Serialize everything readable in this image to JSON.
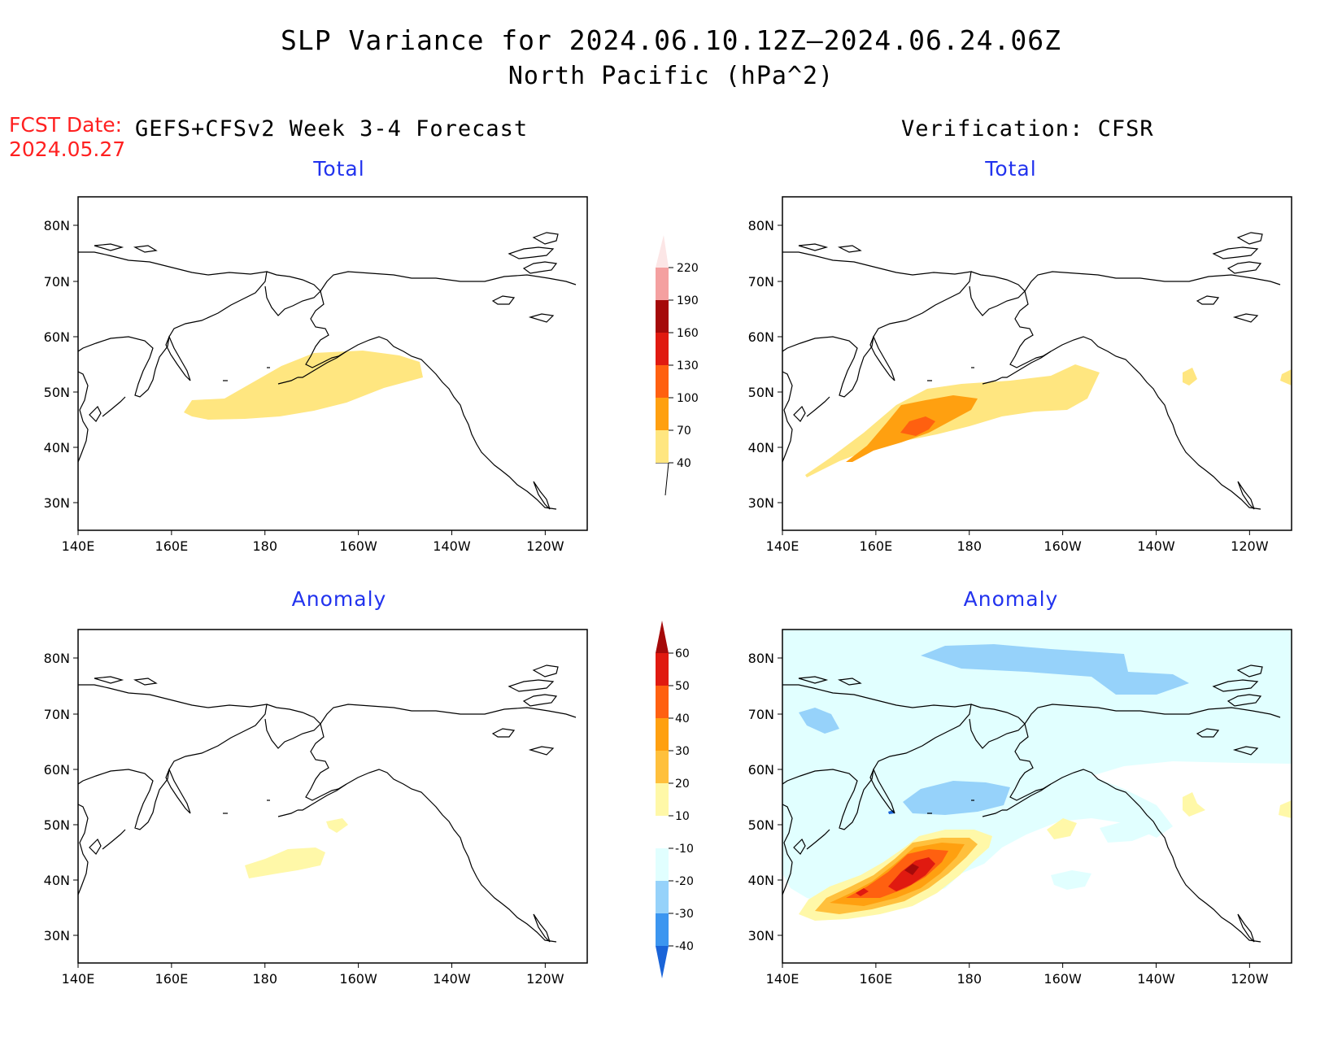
{
  "title": {
    "line1": "SLP Variance for 2024.06.10.12Z–2024.06.24.06Z",
    "line2": "North Pacific (hPa^2)"
  },
  "fcst": {
    "label": "FCST Date:",
    "date": "2024.05.27"
  },
  "columns": {
    "left": "GEFS+CFSv2 Week 3-4 Forecast",
    "right": "Verification: CFSR"
  },
  "panels": {
    "forecast_total": {
      "title": "Total"
    },
    "verification_total": {
      "title": "Total"
    },
    "forecast_anomaly": {
      "title": "Anomaly"
    },
    "verification_anomaly": {
      "title": "Anomaly"
    }
  },
  "axes": {
    "lon_labels": [
      "140E",
      "160E",
      "180",
      "160W",
      "140W",
      "120W"
    ],
    "lat_labels": [
      "80N",
      "70N",
      "60N",
      "50N",
      "40N",
      "30N"
    ]
  },
  "colorbars": {
    "total": {
      "levels": [
        "40",
        "70",
        "100",
        "130",
        "160",
        "190",
        "220"
      ],
      "colors": [
        "#ffe680",
        "#ffa010",
        "#ff6010",
        "#e01a10",
        "#a50a0a",
        "#f4a0a0",
        "#fce6e6"
      ]
    },
    "anomaly": {
      "levels": [
        "-40",
        "-30",
        "-20",
        "-10",
        "10",
        "20",
        "30",
        "40",
        "50",
        "60"
      ],
      "colors": [
        "#1a64d8",
        "#3c96f0",
        "#96d2fa",
        "#e1ffff",
        "#ffffff",
        "#fff8a8",
        "#ffc03c",
        "#ffa010",
        "#ff6010",
        "#e01a10",
        "#a50a0a"
      ]
    }
  }
}
